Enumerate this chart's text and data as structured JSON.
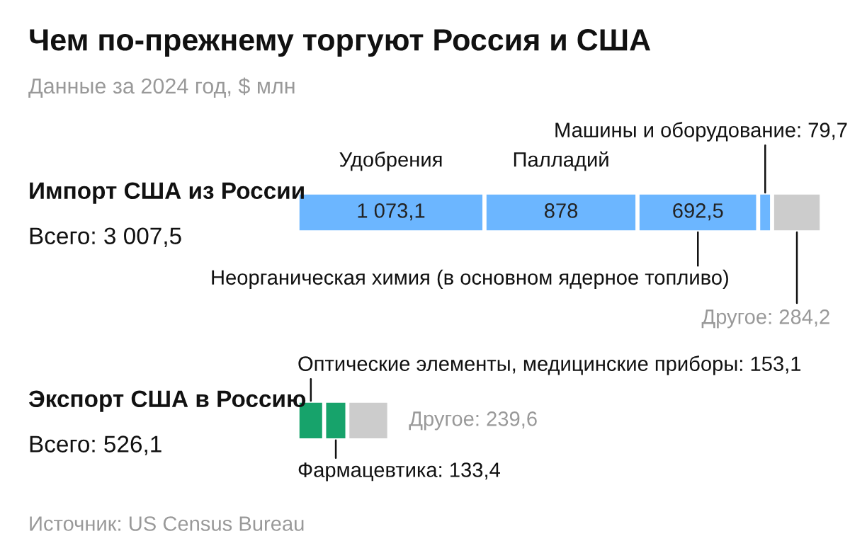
{
  "chart_data": {
    "type": "bar",
    "orientation": "horizontal",
    "stacked": true,
    "title": "Чем по-прежнему торгуют Россия и США",
    "subtitle": "Данные за 2024 год, $ млн",
    "categories": [
      "Импорт США из России",
      "Экспорт США в Россию"
    ],
    "series": [
      {
        "name": "Удобрения",
        "color": "#6cb6ff",
        "values": [
          1073.1,
          null
        ],
        "value_labels": [
          "1 073,1",
          null
        ]
      },
      {
        "name": "Палладий",
        "color": "#6cb6ff",
        "values": [
          878,
          null
        ],
        "value_labels": [
          "878",
          null
        ]
      },
      {
        "name": "Неорганическая химия (в основном ядерное топливо)",
        "color": "#6cb6ff",
        "values": [
          692.5,
          null
        ],
        "value_labels": [
          "692,5",
          null
        ]
      },
      {
        "name": "Машины и оборудование:",
        "color": "#6cb6ff",
        "values": [
          79.7,
          null
        ],
        "value_labels": [
          "79,7",
          null
        ]
      },
      {
        "name": "Другое:",
        "color": "#cccccc",
        "values": [
          284.2,
          null
        ],
        "value_labels": [
          "284,2",
          null
        ]
      },
      {
        "name": "Оптические элементы, медицинские приборы:",
        "color": "#17a36b",
        "values": [
          null,
          153.1
        ],
        "value_labels": [
          null,
          "153,1"
        ]
      },
      {
        "name": "Фармацевтика:",
        "color": "#17a36b",
        "values": [
          null,
          133.4
        ],
        "value_labels": [
          null,
          "133,4"
        ]
      },
      {
        "name": "Другое:",
        "color": "#cccccc",
        "values": [
          null,
          239.6
        ],
        "value_labels": [
          null,
          "239,6"
        ]
      }
    ],
    "annotations": [
      "Всего: 3 007,5",
      "Всего: 526,1",
      "Источник: US Census Bureau"
    ]
  }
}
